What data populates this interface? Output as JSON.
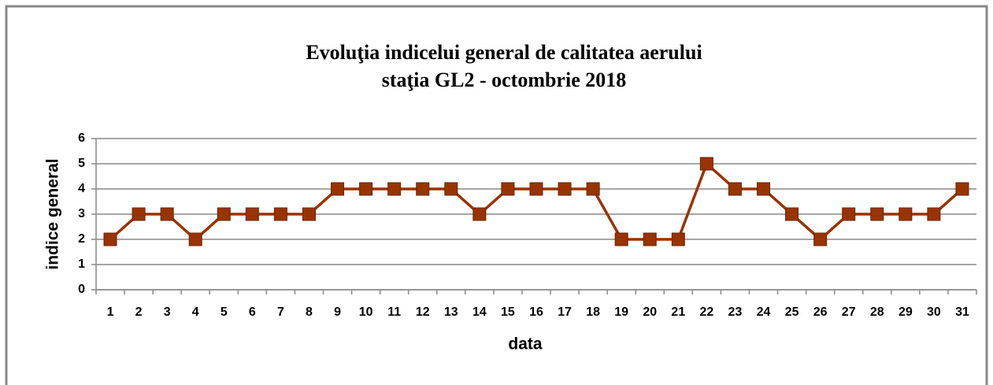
{
  "chart_data": {
    "type": "line",
    "title": "Evoluţia indicelui general de calitatea aerului",
    "subtitle": "staţia GL2 - octombrie 2018",
    "x_label": "data",
    "y_label": "indice general",
    "categories": [
      "1",
      "2",
      "3",
      "4",
      "5",
      "6",
      "7",
      "8",
      "9",
      "10",
      "11",
      "12",
      "13",
      "14",
      "15",
      "16",
      "17",
      "18",
      "19",
      "20",
      "21",
      "22",
      "23",
      "24",
      "25",
      "26",
      "27",
      "28",
      "29",
      "30",
      "31"
    ],
    "series": [
      {
        "name": "indice general",
        "color": "#993300",
        "values": [
          2,
          3,
          3,
          2,
          3,
          3,
          3,
          3,
          4,
          4,
          4,
          4,
          4,
          3,
          4,
          4,
          4,
          4,
          2,
          2,
          2,
          5,
          4,
          4,
          3,
          2,
          3,
          3,
          3,
          3,
          4
        ]
      }
    ],
    "ylim": [
      0,
      6
    ],
    "yticks": [
      0,
      1,
      2,
      3,
      4,
      5,
      6
    ],
    "grid": true
  }
}
